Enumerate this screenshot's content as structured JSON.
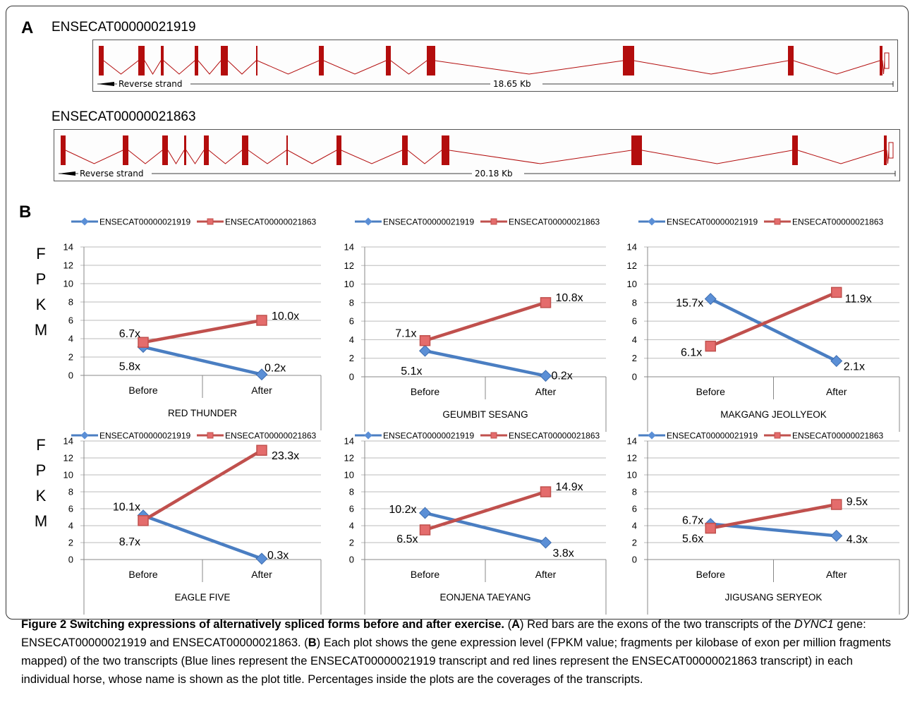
{
  "panel_a": {
    "letter": "A",
    "transcripts": [
      {
        "name": "ENSECAT00000021919",
        "strand_label": "Reverse strand",
        "length_label": "18.65 Kb"
      },
      {
        "name": "ENSECAT00000021863",
        "strand_label": "Reverse strand",
        "length_label": "20.18 Kb"
      }
    ],
    "exon_color": "#b30d0d"
  },
  "panel_b": {
    "letter": "B",
    "y_axis_label": [
      "F",
      "P",
      "K",
      "M"
    ]
  },
  "legend": {
    "series_1": "ENSECAT00000021919",
    "series_2": "ENSECAT00000021863"
  },
  "colors": {
    "blue": "#4a7ec2",
    "red": "#c0504d",
    "blue_marker": "#5b8fd6",
    "red_marker": "#e46c6c"
  },
  "chart_data": [
    {
      "type": "line",
      "title": "RED THUNDER",
      "categories": [
        "Before",
        "After"
      ],
      "ylim": [
        0,
        14
      ],
      "yticks": [
        0,
        2,
        4,
        6,
        8,
        10,
        12,
        14
      ],
      "series": [
        {
          "name": "ENSECAT00000021919",
          "values": [
            3.1,
            0.1
          ],
          "labels": [
            "5.8x",
            "0.2x"
          ]
        },
        {
          "name": "ENSECAT00000021863",
          "values": [
            3.6,
            6.0
          ],
          "labels": [
            "6.7x",
            "10.0x"
          ]
        }
      ]
    },
    {
      "type": "line",
      "title": "GEUMBIT SESANG",
      "categories": [
        "Before",
        "After"
      ],
      "ylim": [
        0,
        14
      ],
      "yticks": [
        0,
        2,
        4,
        6,
        8,
        10,
        12,
        14
      ],
      "series": [
        {
          "name": "ENSECAT00000021919",
          "values": [
            2.8,
            0.1
          ],
          "labels": [
            "5.1x",
            "0.2x"
          ]
        },
        {
          "name": "ENSECAT00000021863",
          "values": [
            3.9,
            8.0
          ],
          "labels": [
            "7.1x",
            "10.8x"
          ]
        }
      ]
    },
    {
      "type": "line",
      "title": "MAKGANG JEOLLYEOK",
      "categories": [
        "Before",
        "After"
      ],
      "ylim": [
        0,
        14
      ],
      "yticks": [
        0,
        2,
        4,
        6,
        8,
        10,
        12,
        14
      ],
      "series": [
        {
          "name": "ENSECAT00000021919",
          "values": [
            8.4,
            1.7
          ],
          "labels": [
            "15.7x",
            "2.1x"
          ]
        },
        {
          "name": "ENSECAT00000021863",
          "values": [
            3.3,
            9.1
          ],
          "labels": [
            "6.1x",
            "11.9x"
          ]
        }
      ]
    },
    {
      "type": "line",
      "title": "EAGLE FIVE",
      "categories": [
        "Before",
        "After"
      ],
      "ylim": [
        0,
        14
      ],
      "yticks": [
        0,
        2,
        4,
        6,
        8,
        10,
        12,
        14
      ],
      "series": [
        {
          "name": "ENSECAT00000021919",
          "values": [
            5.2,
            0.1
          ],
          "labels": [
            "10.1x",
            "0.3x"
          ]
        },
        {
          "name": "ENSECAT00000021863",
          "values": [
            4.6,
            12.9
          ],
          "labels": [
            "8.7x",
            "23.3x"
          ]
        }
      ]
    },
    {
      "type": "line",
      "title": "EONJENA TAEYANG",
      "categories": [
        "Before",
        "After"
      ],
      "ylim": [
        0,
        14
      ],
      "yticks": [
        0,
        2,
        4,
        6,
        8,
        10,
        12,
        14
      ],
      "series": [
        {
          "name": "ENSECAT00000021919",
          "values": [
            5.5,
            2.0
          ],
          "labels": [
            "10.2x",
            "3.8x"
          ]
        },
        {
          "name": "ENSECAT00000021863",
          "values": [
            3.5,
            8.0
          ],
          "labels": [
            "6.5x",
            "14.9x"
          ]
        }
      ]
    },
    {
      "type": "line",
      "title": "JIGUSANG SERYEOK",
      "categories": [
        "Before",
        "After"
      ],
      "ylim": [
        0,
        14
      ],
      "yticks": [
        0,
        2,
        4,
        6,
        8,
        10,
        12,
        14
      ],
      "series": [
        {
          "name": "ENSECAT00000021919",
          "values": [
            4.2,
            2.8
          ],
          "labels": [
            "6.7x",
            "4.3x"
          ]
        },
        {
          "name": "ENSECAT00000021863",
          "values": [
            3.7,
            6.5
          ],
          "labels": [
            "5.6x",
            "9.5x"
          ]
        }
      ]
    }
  ],
  "caption": {
    "title": "Figure 2 Switching expressions of alternatively spliced forms before and after exercise.",
    "a_letter": "A",
    "a_text_1": "Red bars are the exons of the two transcripts of the",
    "gene": "DYNC1",
    "a_text_2": "gene: ENSECAT00000021919 and ENSECAT00000021863.",
    "b_letter": "B",
    "b_text": "Each plot shows the gene expression level (FPKM value; fragments per kilobase of exon per million fragments mapped) of the two transcripts (Blue lines represent the ENSECAT00000021919 transcript and red lines represent the ENSECAT00000021863 transcript) in each individual horse, whose name is shown as the plot title. Percentages inside the plots are the coverages of the transcripts."
  }
}
